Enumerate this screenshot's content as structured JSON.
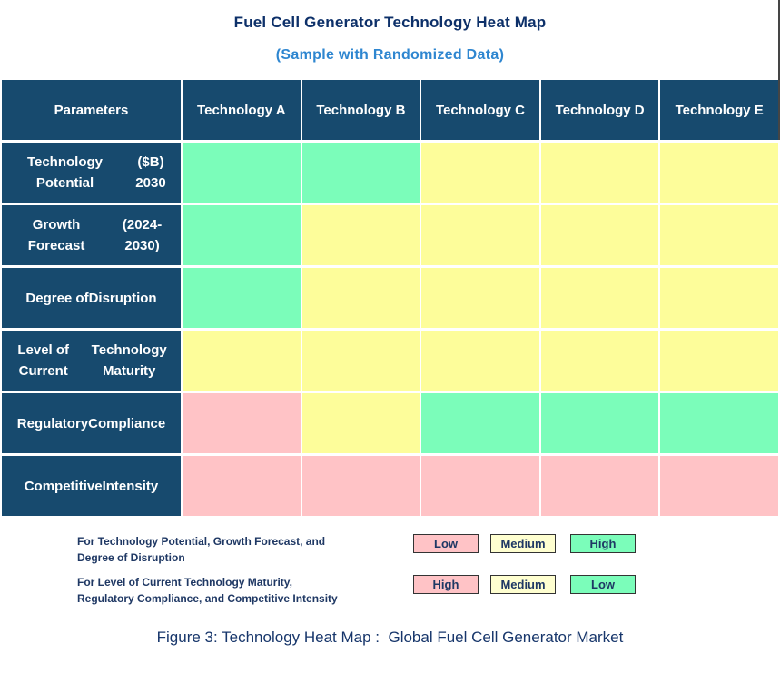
{
  "title": "Fuel Cell Generator Technology Heat Map",
  "subtitle": "(Sample with Randomized Data)",
  "caption": "Figure 3: Technology Heat Map :  Global Fuel Cell Generator Market",
  "colors": {
    "header_bg": "#174a6e",
    "high_green": "#7bfdba",
    "medium_yellow": "#fdfd9a",
    "low_pink": "#ffc3c6",
    "legend_medium_yellow": "#ffffd0",
    "title_navy": "#0d3069",
    "subtitle_blue": "#2e86d0",
    "legend_text_navy": "#1f3864"
  },
  "chart_data": {
    "type": "heatmap",
    "columns": [
      "Parameters",
      "Technology A",
      "Technology B",
      "Technology C",
      "Technology D",
      "Technology E"
    ],
    "rows": [
      {
        "parameter_lines": [
          "Technology Potential",
          "($B) 2030"
        ],
        "spread": false,
        "cell_colors": [
          "green",
          "green",
          "yellow",
          "yellow",
          "yellow"
        ],
        "cell_levels": [
          "High",
          "High",
          "Medium",
          "Medium",
          "Medium"
        ]
      },
      {
        "parameter_lines": [
          "Growth Forecast",
          "(2024-2030)"
        ],
        "spread": false,
        "cell_colors": [
          "green",
          "yellow",
          "yellow",
          "yellow",
          "yellow"
        ],
        "cell_levels": [
          "High",
          "Medium",
          "Medium",
          "Medium",
          "Medium"
        ]
      },
      {
        "parameter_lines": [
          "Degree of",
          "Disruption"
        ],
        "spread": true,
        "cell_colors": [
          "green",
          "yellow",
          "yellow",
          "yellow",
          "yellow"
        ],
        "cell_levels": [
          "High",
          "Medium",
          "Medium",
          "Medium",
          "Medium"
        ]
      },
      {
        "parameter_lines": [
          "Level of Current",
          "Technology Maturity"
        ],
        "spread": false,
        "cell_colors": [
          "yellow",
          "yellow",
          "yellow",
          "yellow",
          "yellow"
        ],
        "cell_levels": [
          "Medium",
          "Medium",
          "Medium",
          "Medium",
          "Medium"
        ]
      },
      {
        "parameter_lines": [
          "Regulatory",
          "Compliance"
        ],
        "spread": false,
        "cell_colors": [
          "pink",
          "yellow",
          "green",
          "green",
          "green"
        ],
        "cell_levels": [
          "High",
          "Medium",
          "Low",
          "Low",
          "Low"
        ]
      },
      {
        "parameter_lines": [
          "Competitive",
          "Intensity"
        ],
        "spread": false,
        "cell_colors": [
          "pink",
          "pink",
          "pink",
          "pink",
          "pink"
        ],
        "cell_levels": [
          "High",
          "High",
          "High",
          "High",
          "High"
        ]
      }
    ]
  },
  "legend": {
    "entries": [
      {
        "description_lines": [
          "For Technology Potential, Growth Forecast, and",
          "Degree of Disruption"
        ],
        "swatches": [
          {
            "label": "Low",
            "color": "pink"
          },
          {
            "label": "Medium",
            "color": "legend_yellow"
          },
          {
            "label": "High",
            "color": "green"
          }
        ]
      },
      {
        "description_lines": [
          "For Level of Current Technology Maturity,",
          "Regulatory Compliance, and Competitive Intensity"
        ],
        "swatches": [
          {
            "label": "High",
            "color": "pink"
          },
          {
            "label": "Medium",
            "color": "legend_yellow"
          },
          {
            "label": "Low",
            "color": "green"
          }
        ]
      }
    ]
  }
}
